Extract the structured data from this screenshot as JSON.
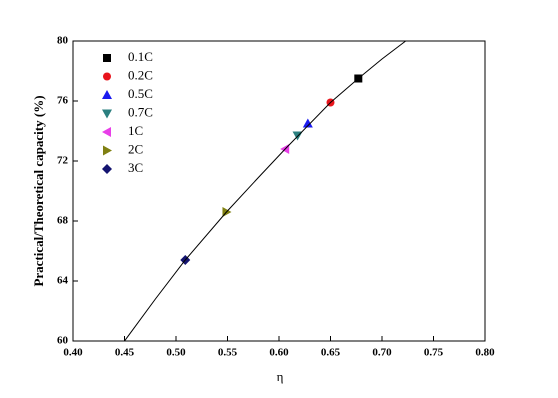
{
  "chart_data": {
    "type": "scatter",
    "xlabel": "η",
    "ylabel": "Practical/Theoretical capacity (%)",
    "xlim": [
      0.4,
      0.8
    ],
    "xticks": [
      {
        "value": 0.4,
        "label": "0.40"
      },
      0.45,
      {
        "value": 0.5,
        "label": "0.50"
      },
      0.55,
      {
        "value": 0.6,
        "label": "0.60"
      },
      0.65,
      {
        "value": 0.7,
        "label": "0.70"
      },
      0.75,
      {
        "value": 0.8,
        "label": "0.80"
      }
    ],
    "ylim": [
      60,
      80
    ],
    "yticks": [
      60,
      64,
      68,
      72,
      76,
      80
    ],
    "legend": "upper-left",
    "series": [
      {
        "name": "0.1C",
        "color": "#000000",
        "marker": "square",
        "x": [
          0.677
        ],
        "values": [
          77.5
        ]
      },
      {
        "name": "0.2C",
        "color": "#e8141c",
        "marker": "circle",
        "x": [
          0.65
        ],
        "values": [
          75.9
        ]
      },
      {
        "name": "0.5C",
        "color": "#1a1aef",
        "marker": "triangle-up",
        "x": [
          0.628
        ],
        "values": [
          74.5
        ]
      },
      {
        "name": "0.7C",
        "color": "#2a7f7f",
        "marker": "triangle-down",
        "x": [
          0.618
        ],
        "values": [
          73.7
        ]
      },
      {
        "name": "1C",
        "color": "#e83fe8",
        "marker": "triangle-left",
        "x": [
          0.606
        ],
        "values": [
          72.8
        ]
      },
      {
        "name": "2C",
        "color": "#808012",
        "marker": "triangle-right",
        "x": [
          0.549
        ],
        "values": [
          68.6
        ]
      },
      {
        "name": "3C",
        "color": "#141470",
        "marker": "diamond",
        "x": [
          0.509
        ],
        "values": [
          65.4
        ]
      },
      {
        "color": "#000000",
        "marker": "line",
        "x": [
          0.45,
          0.48,
          0.509,
          0.549,
          0.58,
          0.606,
          0.65,
          0.677,
          0.7,
          0.723
        ],
        "values": [
          60,
          62.8,
          65.4,
          68.6,
          70.9,
          72.8,
          75.9,
          77.5,
          78.8,
          80
        ]
      }
    ]
  }
}
